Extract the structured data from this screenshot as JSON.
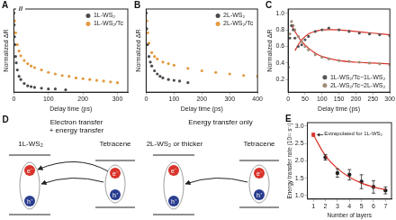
{
  "chart_data": [
    {
      "panel": "A",
      "type": "scatter",
      "x_label": "Delay time (ps)",
      "y_label": "Normalized ΔR",
      "annotation": {
        "text": "//",
        "x": 20,
        "y": 1.05
      },
      "xlim": [
        0,
        330
      ],
      "xticks": [
        0,
        100,
        200,
        300
      ],
      "ylim": [
        0,
        1.05
      ],
      "tick_labels": "x",
      "grid": false,
      "legend": "upper right",
      "series": [
        {
          "name": "1L-WS₂",
          "color": "#4a4a4a",
          "x": [
            0,
            1,
            2,
            3,
            5,
            7,
            10,
            15,
            20,
            30,
            40,
            50,
            60,
            80,
            100,
            120,
            150
          ],
          "values": [
            1.0,
            0.85,
            0.7,
            0.6,
            0.45,
            0.37,
            0.28,
            0.2,
            0.16,
            0.11,
            0.08,
            0.07,
            0.06,
            0.05,
            0.04,
            0.04,
            0.03
          ]
        },
        {
          "name": "1L-WS₂/Tc",
          "color": "#e39a3f",
          "x": [
            0,
            2,
            5,
            10,
            15,
            20,
            30,
            40,
            50,
            60,
            80,
            100,
            120,
            140,
            160,
            180,
            200,
            220,
            240,
            260,
            280,
            300
          ],
          "values": [
            1.0,
            0.9,
            0.75,
            0.6,
            0.52,
            0.46,
            0.4,
            0.36,
            0.33,
            0.31,
            0.28,
            0.25,
            0.23,
            0.21,
            0.2,
            0.18,
            0.17,
            0.16,
            0.15,
            0.14,
            0.13,
            0.12
          ]
        }
      ]
    },
    {
      "panel": "B",
      "type": "scatter",
      "x_label": "Delay time (ps)",
      "y_label": "Normalized ΔR",
      "xlim": [
        0,
        400
      ],
      "xticks": [
        0,
        100,
        200,
        300,
        400
      ],
      "ylim": [
        0,
        1.05
      ],
      "tick_labels": "x",
      "grid": false,
      "legend": "upper right",
      "series": [
        {
          "name": "2L-WS₂",
          "color": "#4a4a4a",
          "x": [
            0,
            2,
            5,
            10,
            15,
            20,
            30,
            40,
            50,
            60,
            80,
            100,
            120,
            150
          ],
          "values": [
            1.0,
            0.8,
            0.6,
            0.45,
            0.38,
            0.33,
            0.27,
            0.23,
            0.2,
            0.18,
            0.16,
            0.15,
            0.14,
            0.12
          ]
        },
        {
          "name": "2L-WS₂/Tc",
          "color": "#e39a3f",
          "x": [
            0,
            2,
            5,
            10,
            20,
            30,
            40,
            60,
            80,
            100,
            150,
            200,
            250,
            300,
            350,
            400
          ],
          "values": [
            1.0,
            0.9,
            0.75,
            0.62,
            0.5,
            0.45,
            0.42,
            0.38,
            0.36,
            0.34,
            0.3,
            0.27,
            0.25,
            0.23,
            0.21,
            0.2
          ]
        }
      ]
    },
    {
      "panel": "C",
      "type": "scatter",
      "x_label": "Delay time (ps)",
      "y_label": "Normalized ΔR",
      "xlim": [
        0,
        300
      ],
      "xticks": [
        0,
        50,
        100,
        150,
        200,
        250,
        300
      ],
      "ylim": [
        0.05,
        1.05
      ],
      "yticks": [
        0.2,
        0.4,
        0.6,
        0.8,
        {
          "value": 1,
          "label": "1.0"
        }
      ],
      "grid": false,
      "legend": "lower right",
      "series": [
        {
          "name": "1L-WS₂/Tc−1L-WS₂",
          "color": "#555555",
          "x": [
            0,
            5,
            10,
            15,
            20,
            30,
            40,
            50,
            60,
            80,
            100,
            120,
            150,
            180,
            210,
            240,
            270,
            300
          ],
          "values": [
            0.35,
            0.7,
            0.85,
            0.8,
            0.7,
            0.6,
            0.62,
            0.68,
            0.72,
            0.78,
            0.8,
            0.82,
            0.8,
            0.78,
            0.76,
            0.75,
            0.74,
            0.73
          ]
        },
        {
          "name": "2L-WS₂/Tc−2L-WS₂",
          "color": "#a08c78",
          "x": [
            0,
            5,
            10,
            15,
            20,
            30,
            40,
            50,
            60,
            80,
            100,
            120,
            150,
            180,
            210,
            240,
            270,
            300
          ],
          "values": [
            0.35,
            0.75,
            0.9,
            0.85,
            0.8,
            0.72,
            0.66,
            0.6,
            0.56,
            0.5,
            0.47,
            0.45,
            0.43,
            0.42,
            0.41,
            0.4,
            0.39,
            0.38
          ]
        },
        {
          "type": "line",
          "color": "#d9342b",
          "x": [
            20,
            40,
            60,
            80,
            100,
            150,
            200,
            250,
            300
          ],
          "values": [
            0.55,
            0.68,
            0.75,
            0.78,
            0.8,
            0.8,
            0.78,
            0.76,
            0.74
          ]
        },
        {
          "type": "line",
          "color": "#d9342b",
          "x": [
            10,
            20,
            40,
            60,
            80,
            100,
            150,
            200,
            250,
            300
          ],
          "values": [
            0.85,
            0.78,
            0.66,
            0.58,
            0.52,
            0.48,
            0.43,
            0.41,
            0.4,
            0.39
          ]
        }
      ]
    },
    {
      "panel": "E",
      "type": "scatter",
      "x_label": "Number of layers",
      "y_label": "Energy transfer rate (10¹¹ s⁻¹)",
      "annotation": {
        "text": "Extrapolated for 1L-WS₂",
        "x": 1,
        "y": 2.75
      },
      "xlim": [
        0.5,
        7.5
      ],
      "xticks": [
        1,
        2,
        3,
        4,
        5,
        6,
        7
      ],
      "ylim": [
        0.9,
        3.1
      ],
      "yticks": [
        {
          "value": 1,
          "label": "1.0"
        },
        1.5,
        {
          "value": 2,
          "label": "2.0"
        },
        2.5,
        {
          "value": 3,
          "label": "3.0"
        }
      ],
      "grid": false,
      "series": [
        {
          "type": "line",
          "color": "#d9342b",
          "x": [
            1,
            2,
            3,
            4,
            5,
            6,
            7
          ],
          "values": [
            2.75,
            2.15,
            1.78,
            1.53,
            1.36,
            1.25,
            1.17
          ]
        },
        {
          "type": "scatter",
          "colors": [
            "#d9342b",
            "#222222",
            "#222222",
            "#222222",
            "#222222",
            "#222222",
            "#222222"
          ],
          "x": [
            1,
            2,
            3,
            4,
            5,
            6,
            7
          ],
          "values": [
            2.75,
            2.1,
            1.65,
            1.6,
            1.4,
            1.25,
            1.15
          ],
          "errors": [
            0.05,
            0.08,
            0.12,
            0.15,
            0.2,
            0.18,
            0.1
          ]
        }
      ]
    }
  ],
  "diagram": {
    "panel": "D",
    "left": {
      "process": [
        "Electron transfer",
        "+ energy transfer"
      ],
      "material": "1L-WS₂",
      "partner": "Tetracene"
    },
    "right": {
      "process": [
        "Energy transfer only"
      ],
      "material": "2L-WS₂ or thicker",
      "partner": "Tetracene"
    },
    "electron": "e⁻",
    "hole": "h⁺"
  }
}
